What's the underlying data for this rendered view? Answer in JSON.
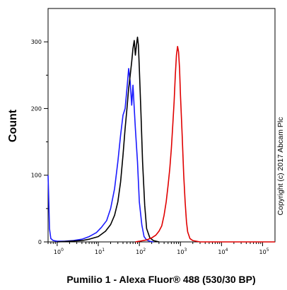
{
  "chart_data": {
    "type": "line",
    "xlabel": "Pumilio 1 - Alexa Fluor® 488 (530/30 BP)",
    "ylabel": "Count",
    "x_scale": "log",
    "xlim": [
      0.6,
      200000
    ],
    "ylim": [
      0,
      350
    ],
    "x_ticks": [
      {
        "value": 1,
        "label": "10"
      },
      {
        "value": 10,
        "label": "10"
      },
      {
        "value": 100,
        "label": "10"
      },
      {
        "value": 1000,
        "label": "10"
      },
      {
        "value": 10000,
        "label": "10"
      },
      {
        "value": 100000,
        "label": "10"
      }
    ],
    "x_tick_exponents": [
      "0",
      "1",
      "2",
      "3",
      "4",
      "5"
    ],
    "y_ticks": [
      0,
      100,
      200,
      300
    ],
    "annotation": "Copyright (c) 2017 Abcam Plc",
    "series": [
      {
        "color": "#1a1aff",
        "x": [
          0.6,
          0.62,
          0.65,
          0.7,
          0.8,
          1.0,
          1.5,
          2.5,
          4,
          6,
          9,
          12,
          16,
          20,
          25,
          30,
          35,
          40,
          45,
          50,
          55,
          60,
          65,
          70,
          80,
          90,
          100,
          115,
          130,
          150,
          180,
          220
        ],
        "y": [
          100,
          70,
          20,
          5,
          2,
          1,
          1,
          2,
          4,
          8,
          14,
          22,
          32,
          50,
          80,
          120,
          160,
          190,
          200,
          230,
          260,
          240,
          205,
          235,
          170,
          120,
          60,
          25,
          8,
          3,
          1,
          0
        ]
      },
      {
        "color": "#000000",
        "x": [
          1,
          2,
          4,
          6,
          10,
          15,
          20,
          25,
          30,
          35,
          40,
          45,
          50,
          55,
          60,
          65,
          70,
          75,
          80,
          85,
          90,
          95,
          100,
          110,
          120,
          135,
          150,
          180,
          220,
          300
        ],
        "y": [
          0,
          1,
          2,
          4,
          8,
          16,
          26,
          40,
          60,
          90,
          130,
          170,
          200,
          230,
          250,
          270,
          290,
          302,
          280,
          295,
          307,
          295,
          260,
          190,
          120,
          55,
          20,
          6,
          2,
          0
        ]
      },
      {
        "color": "#e00000",
        "x": [
          80,
          100,
          150,
          200,
          250,
          300,
          350,
          400,
          450,
          500,
          550,
          600,
          650,
          700,
          750,
          800,
          850,
          900,
          950,
          1000,
          1100,
          1200,
          1300,
          1400,
          1500,
          1700,
          2000,
          3000,
          10000,
          200000
        ],
        "y": [
          0,
          1,
          3,
          6,
          10,
          16,
          24,
          40,
          60,
          85,
          110,
          140,
          175,
          210,
          250,
          280,
          293,
          285,
          260,
          220,
          160,
          100,
          60,
          30,
          15,
          5,
          2,
          0,
          0,
          0
        ]
      }
    ]
  }
}
